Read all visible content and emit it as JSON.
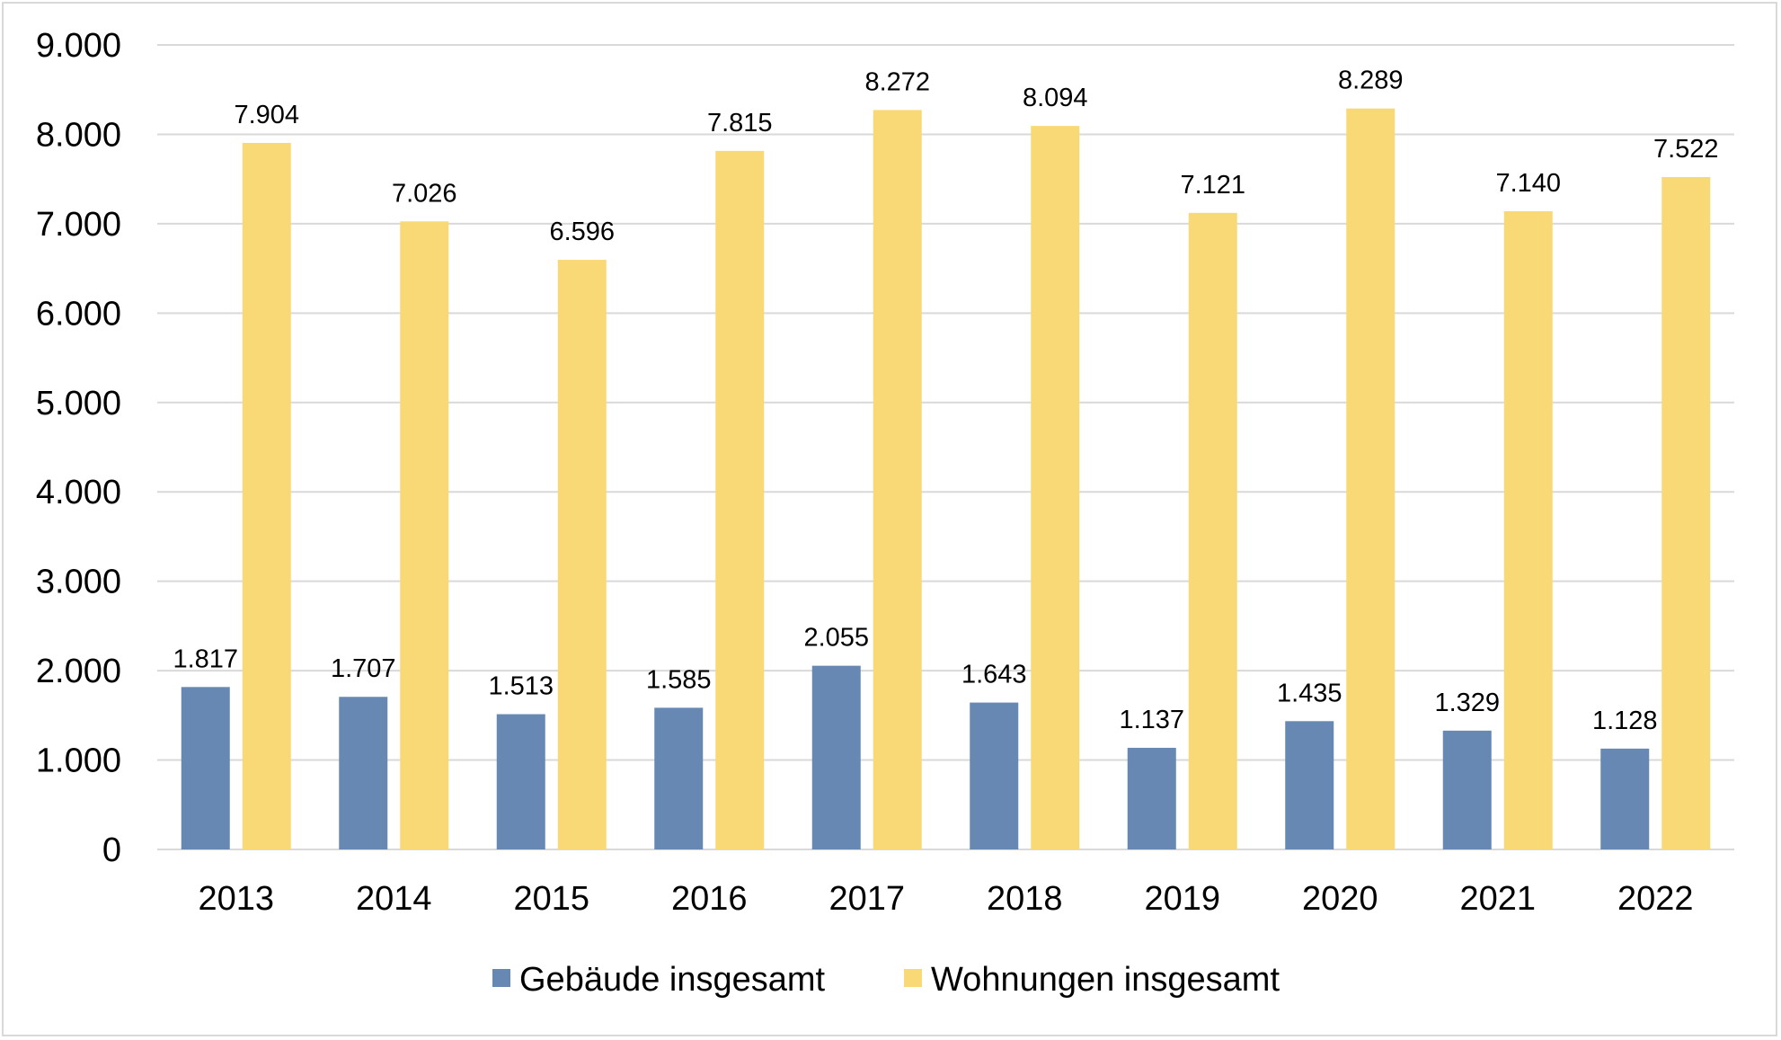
{
  "chart_data": {
    "type": "bar",
    "categories": [
      "2013",
      "2014",
      "2015",
      "2016",
      "2017",
      "2018",
      "2019",
      "2020",
      "2021",
      "2022"
    ],
    "series": [
      {
        "name": "Gebäude insgesamt",
        "values": [
          1817,
          1707,
          1513,
          1585,
          2055,
          1643,
          1137,
          1435,
          1329,
          1128
        ],
        "labels": [
          "1.817",
          "1.707",
          "1.513",
          "1.585",
          "2.055",
          "1.643",
          "1.137",
          "1.435",
          "1.329",
          "1.128"
        ],
        "color": "#6788b3"
      },
      {
        "name": "Wohnungen insgesamt",
        "values": [
          7904,
          7026,
          6596,
          7815,
          8272,
          8094,
          7121,
          8289,
          7140,
          7522
        ],
        "labels": [
          "7.904",
          "7.026",
          "6.596",
          "7.815",
          "8.272",
          "8.094",
          "7.121",
          "8.289",
          "7.140",
          "7.522"
        ],
        "color": "#f9d975"
      }
    ],
    "ylim": [
      0,
      9000
    ],
    "yticks": [
      0,
      1000,
      2000,
      3000,
      4000,
      5000,
      6000,
      7000,
      8000,
      9000
    ],
    "ytick_labels": [
      "0",
      "1.000",
      "2.000",
      "3.000",
      "4.000",
      "5.000",
      "6.000",
      "7.000",
      "8.000",
      "9.000"
    ],
    "grid": true,
    "legend": "bottom",
    "gridline_color": "#d9d9d9"
  }
}
